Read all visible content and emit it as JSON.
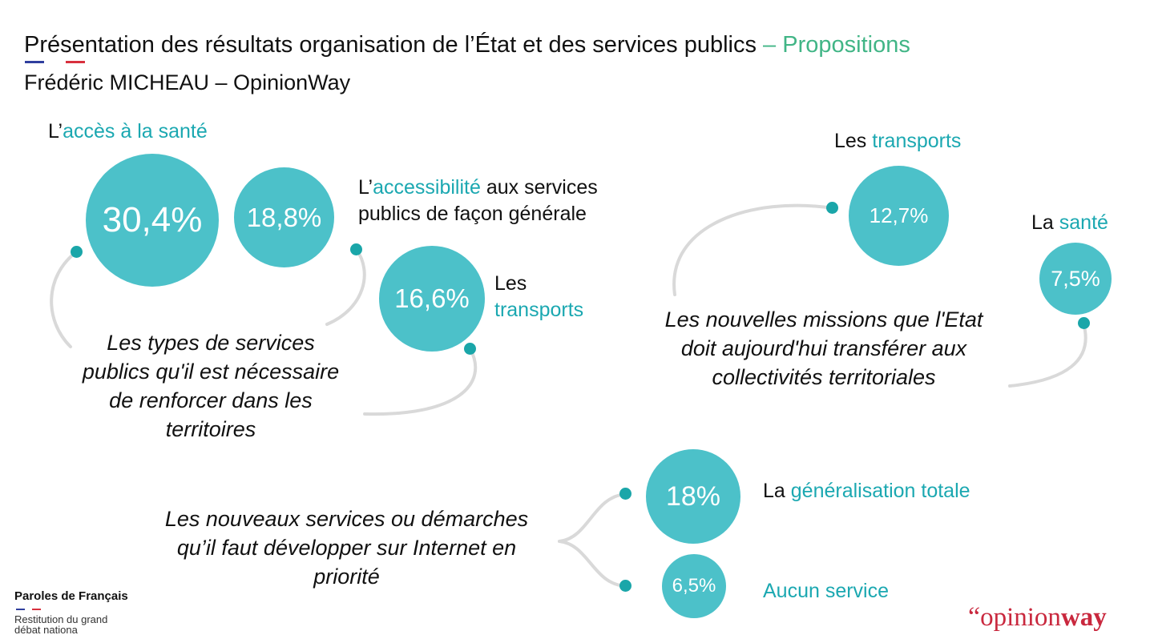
{
  "header": {
    "title_main": "Présentation des résultats organisation de l’État et des services publics",
    "title_accent": " – Propositions",
    "subtitle": "Frédéric MICHEAU – OpinionWay"
  },
  "group1": {
    "topic": [
      "Les types de services",
      "publics qu'il est nécessaire",
      "de renforcer dans les",
      "territoires"
    ],
    "items": [
      {
        "value": "30,4%",
        "label_pre": "L’",
        "label_hl": "accès à la santé",
        "label_post": ""
      },
      {
        "value": "18,8%",
        "label_pre": "L’",
        "label_hl": "accessibilité",
        "label_post": " aux services",
        "label_line2": "publics de façon générale"
      },
      {
        "value": "16,6%",
        "label_pre": "Les",
        "label_hl": "transports"
      }
    ]
  },
  "group2": {
    "topic": [
      "Les nouvelles missions que l'Etat",
      "doit aujourd'hui transférer aux",
      "collectivités territoriales"
    ],
    "items": [
      {
        "value": "12,7%",
        "label_pre": "Les ",
        "label_hl": "transports"
      },
      {
        "value": "7,5%",
        "label_pre": "La ",
        "label_hl": "santé"
      }
    ]
  },
  "group3": {
    "topic": [
      "Les nouveaux services ou démarches",
      "qu’il faut développer sur Internet en",
      "priorité"
    ],
    "items": [
      {
        "value": "18%",
        "label_pre": "La ",
        "label_hl": "généralisation totale"
      },
      {
        "value": "6,5%",
        "label_hl": "Aucun service"
      }
    ]
  },
  "footer": {
    "brand": "Paroles de Français",
    "sub": "Restitution du grand débat nationa"
  },
  "logo": {
    "quote": "“",
    "text_regular": "opinion",
    "text_bold": "way"
  },
  "colors": {
    "circle": "#4cc1c9",
    "dot": "#1aa6a9",
    "highlight": "#1ba8b1",
    "title_accent": "#41b586",
    "logo": "#c9283e"
  }
}
